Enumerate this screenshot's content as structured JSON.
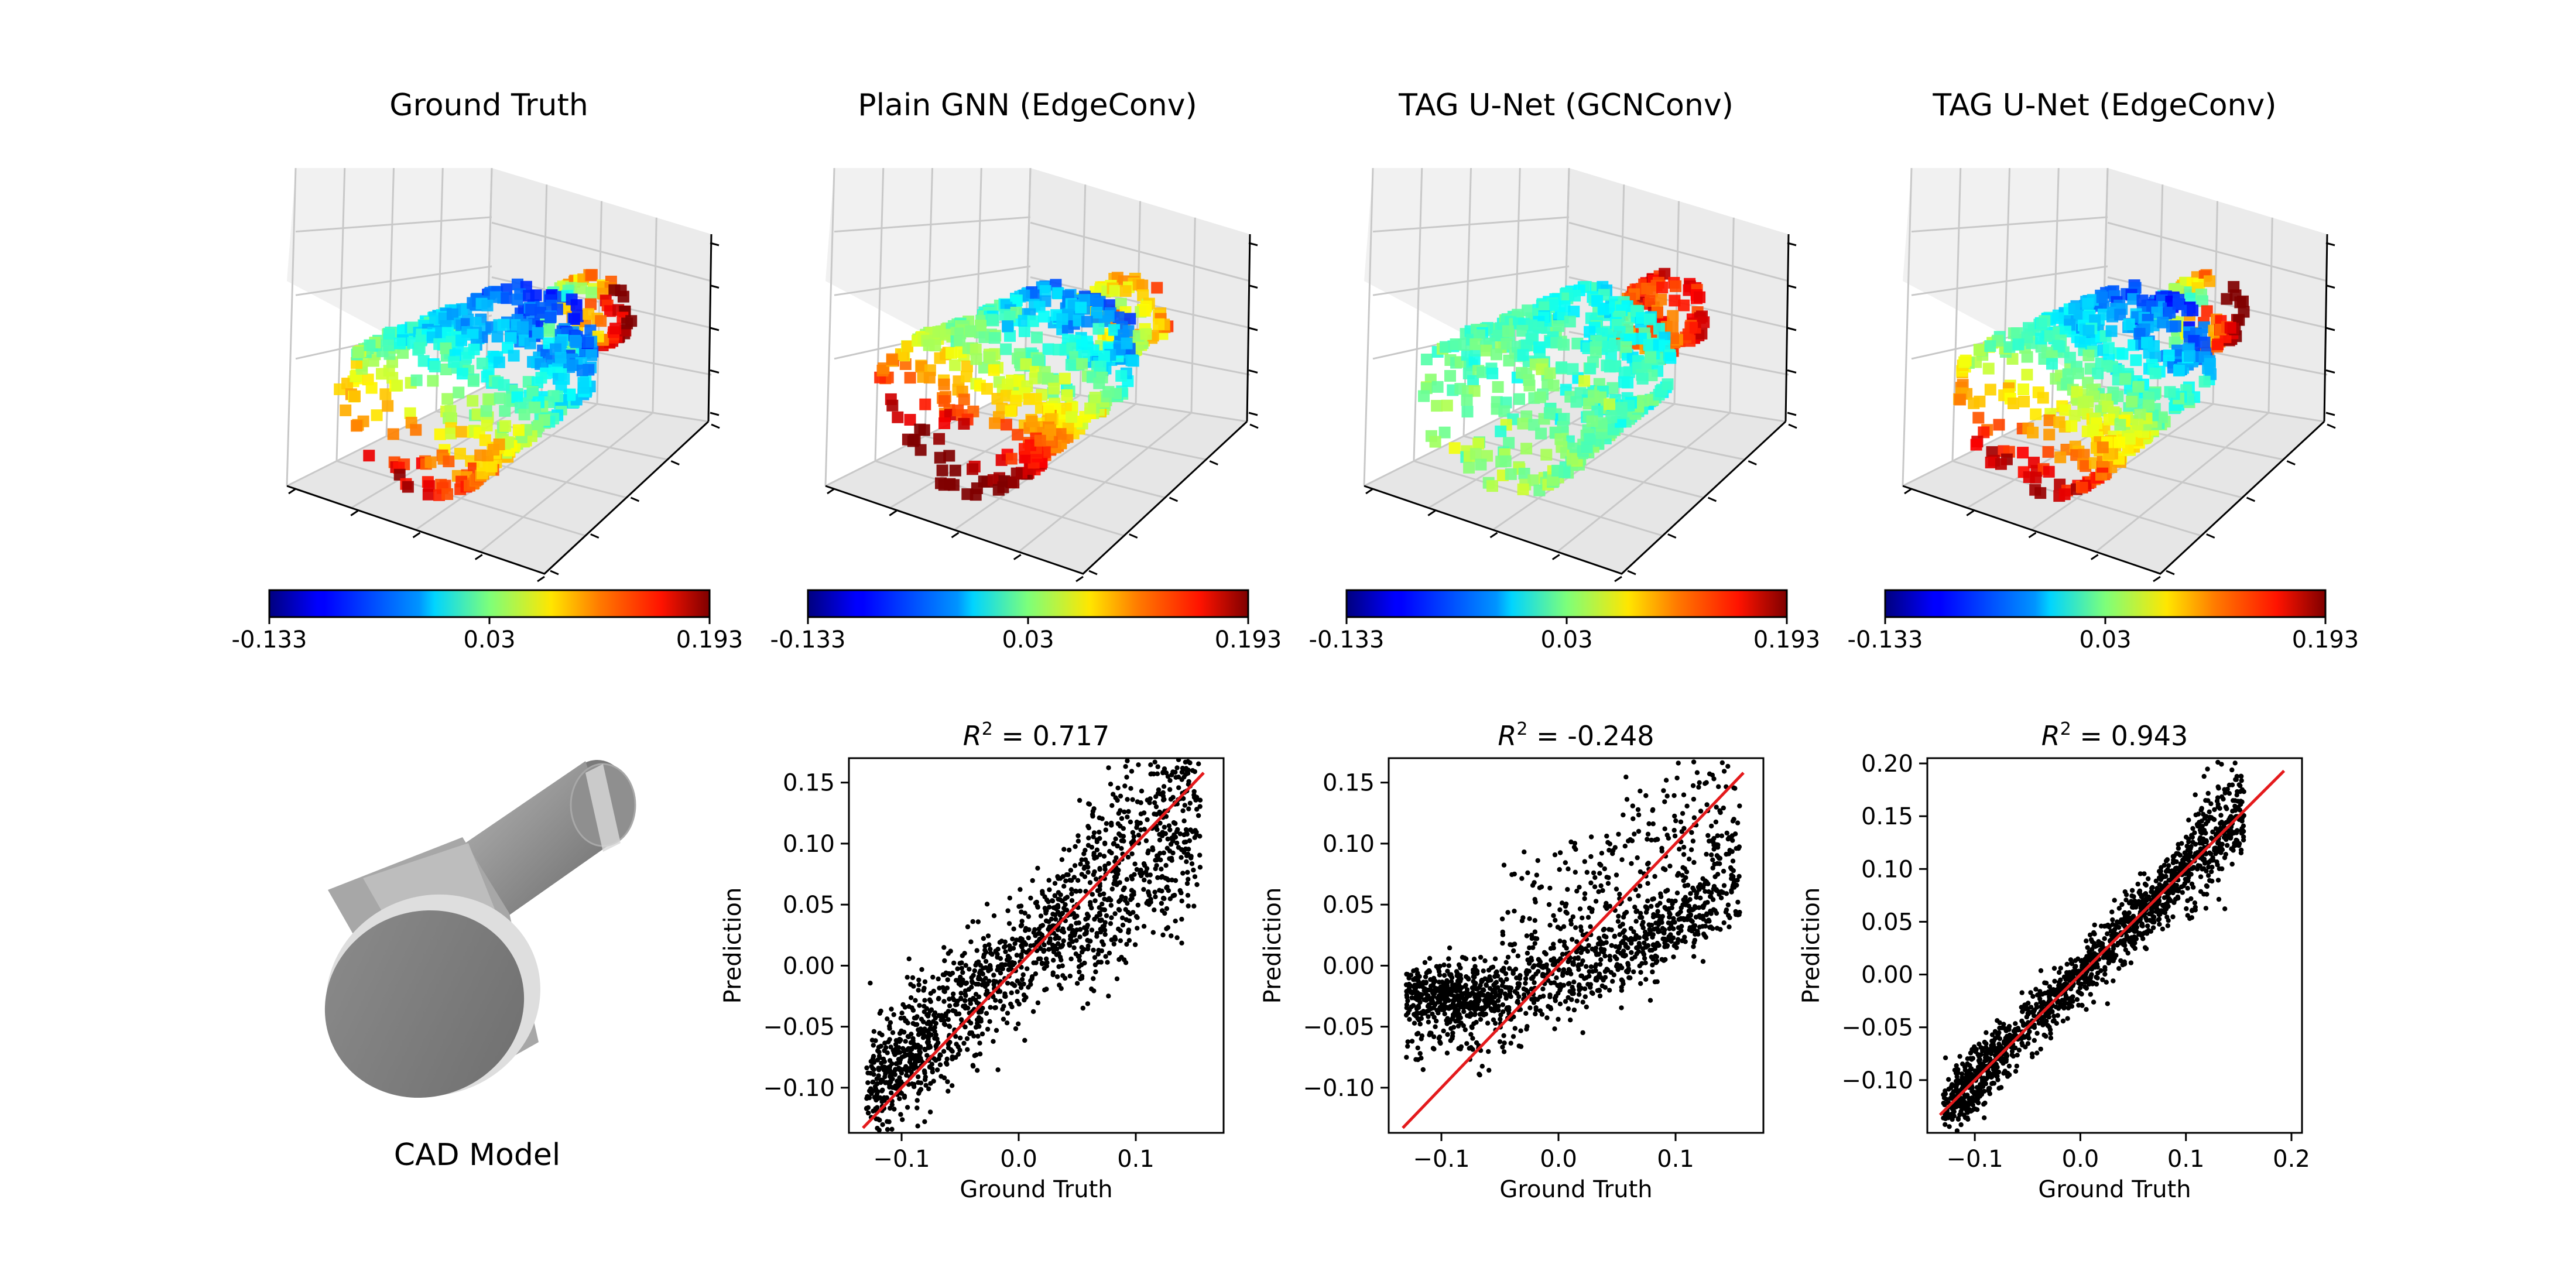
{
  "colors": {
    "regression_line": "#e41a1c",
    "points": "#000000",
    "pane": "#f1f1f1",
    "grid": "#c8c8c8",
    "cad_gray": "#9a9a9a"
  },
  "colormap": {
    "name": "jet",
    "min_label": "-0.133",
    "mid_label": "0.03",
    "max_label": "0.193",
    "min": -0.133,
    "mid": 0.03,
    "max": 0.193
  },
  "top_panels": [
    {
      "title": "Ground Truth",
      "variant": "gt"
    },
    {
      "title": "Plain GNN (EdgeConv)",
      "variant": "plain"
    },
    {
      "title": "TAG U-Net (GCNConv)",
      "variant": "gcn"
    },
    {
      "title": "TAG U-Net (EdgeConv)",
      "variant": "edge"
    }
  ],
  "cad": {
    "label": "CAD Model"
  },
  "chart_data": [
    {
      "type": "scatter",
      "title_r2_label": "R",
      "title_exponent": "2",
      "title_value": " = 0.717",
      "r2": 0.717,
      "xlabel": "Ground Truth",
      "ylabel": "Prediction",
      "xlim": [
        -0.145,
        0.175
      ],
      "ylim": [
        -0.137,
        0.17
      ],
      "xticks": [
        -0.1,
        0.0,
        0.1
      ],
      "xtick_labels": [
        "−0.1",
        "0.0",
        "0.1"
      ],
      "yticks": [
        -0.1,
        -0.05,
        0.0,
        0.05,
        0.1,
        0.15
      ],
      "ytick_labels": [
        "−0.10",
        "−0.05",
        "0.00",
        "0.05",
        "0.10",
        "0.15"
      ],
      "reference_line": {
        "x": [
          -0.133,
          0.158
        ],
        "y": [
          -0.133,
          0.158
        ]
      },
      "seed": 11
    },
    {
      "type": "scatter",
      "title_r2_label": "R",
      "title_exponent": "2",
      "title_value": " = -0.248",
      "r2": -0.248,
      "xlabel": "Ground Truth",
      "ylabel": "Prediction",
      "xlim": [
        -0.145,
        0.175
      ],
      "ylim": [
        -0.137,
        0.17
      ],
      "xticks": [
        -0.1,
        0.0,
        0.1
      ],
      "xtick_labels": [
        "−0.1",
        "0.0",
        "0.1"
      ],
      "yticks": [
        -0.1,
        -0.05,
        0.0,
        0.05,
        0.1,
        0.15
      ],
      "ytick_labels": [
        "−0.10",
        "−0.05",
        "0.00",
        "0.05",
        "0.10",
        "0.15"
      ],
      "reference_line": {
        "x": [
          -0.133,
          0.158
        ],
        "y": [
          -0.133,
          0.158
        ]
      },
      "seed": 23
    },
    {
      "type": "scatter",
      "title_r2_label": "R",
      "title_exponent": "2",
      "title_value": " = 0.943",
      "r2": 0.943,
      "xlabel": "Ground Truth",
      "ylabel": "Prediction",
      "xlim": [
        -0.145,
        0.21
      ],
      "ylim": [
        -0.15,
        0.205
      ],
      "xticks": [
        -0.1,
        0.0,
        0.1,
        0.2
      ],
      "xtick_labels": [
        "−0.1",
        "0.0",
        "0.1",
        "0.2"
      ],
      "yticks": [
        -0.1,
        -0.05,
        0.0,
        0.05,
        0.1,
        0.15,
        0.2
      ],
      "ytick_labels": [
        "−0.10",
        "−0.05",
        "0.00",
        "0.05",
        "0.10",
        "0.15",
        "0.20"
      ],
      "reference_line": {
        "x": [
          -0.133,
          0.193
        ],
        "y": [
          -0.133,
          0.193
        ]
      },
      "seed": 37
    }
  ]
}
